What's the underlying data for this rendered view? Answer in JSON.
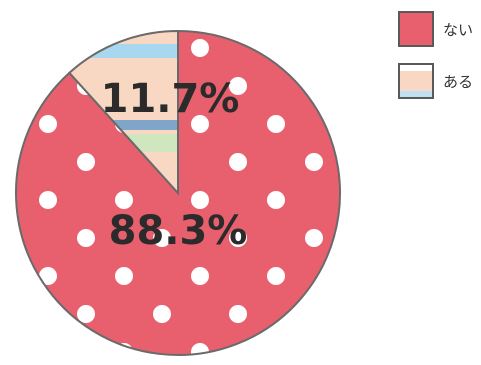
{
  "chart_data": {
    "type": "pie",
    "categories": [
      "ない",
      "ある"
    ],
    "values": [
      88.3,
      11.7
    ],
    "value_labels": [
      "88.3%",
      "11.7%"
    ],
    "legend_position": "top-right",
    "colors": {
      "ない": "#e8606e",
      "ある": "#f8d7c3"
    }
  },
  "legend": {
    "no_label": "ない",
    "yes_label": "ある"
  }
}
